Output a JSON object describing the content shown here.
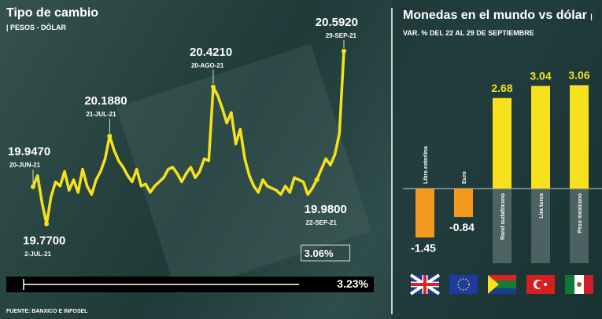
{
  "chart_data": [
    {
      "type": "line",
      "title": "Tipo de cambio",
      "subtitle": "PESOS - DÓLAR",
      "color": "#f5e21a",
      "categories": [
        "20-JUN-21",
        null,
        null,
        "2-JUL-21",
        null,
        null,
        null,
        null,
        null,
        null,
        null,
        null,
        null,
        null,
        null,
        null,
        null,
        "21-JUL-21",
        null,
        null,
        null,
        null,
        null,
        null,
        null,
        null,
        null,
        null,
        null,
        null,
        null,
        null,
        null,
        null,
        null,
        null,
        null,
        null,
        null,
        null,
        "20-AGO-21",
        null,
        null,
        null,
        null,
        null,
        null,
        null,
        null,
        null,
        null,
        null,
        null,
        null,
        null,
        null,
        null,
        null,
        null,
        null,
        null,
        null,
        null,
        "22-SEP-21",
        null,
        null,
        null,
        null,
        null,
        "29-SEP-21"
      ],
      "values": [
        19.947,
        20.0,
        19.87,
        19.77,
        19.9,
        19.97,
        19.95,
        20.02,
        19.93,
        19.98,
        19.92,
        20.03,
        19.95,
        19.91,
        19.98,
        20.02,
        20.08,
        20.188,
        20.12,
        20.07,
        20.04,
        20.0,
        19.97,
        20.03,
        19.95,
        19.96,
        19.92,
        19.95,
        19.97,
        19.99,
        20.03,
        20.04,
        20.01,
        19.97,
        20.01,
        20.04,
        19.99,
        20.02,
        20.08,
        20.07,
        20.421,
        20.38,
        20.32,
        20.25,
        20.3,
        20.15,
        20.22,
        20.08,
        20.0,
        19.95,
        19.92,
        19.98,
        19.95,
        19.94,
        19.93,
        19.91,
        19.95,
        19.92,
        19.99,
        19.98,
        19.97,
        19.91,
        19.94,
        19.98,
        20.03,
        20.08,
        20.05,
        20.1,
        20.2,
        20.592
      ],
      "value_labels": [
        "19.9470",
        null,
        null,
        "19.7700",
        null,
        null,
        null,
        null,
        null,
        null,
        null,
        null,
        null,
        null,
        null,
        null,
        null,
        "20.1880",
        null,
        null,
        null,
        null,
        null,
        null,
        null,
        null,
        null,
        null,
        null,
        null,
        null,
        null,
        null,
        null,
        null,
        null,
        null,
        null,
        null,
        null,
        "20.4210",
        null,
        null,
        null,
        null,
        null,
        null,
        null,
        null,
        null,
        null,
        null,
        null,
        null,
        null,
        null,
        null,
        null,
        null,
        null,
        null,
        null,
        null,
        "19.9800",
        null,
        null,
        null,
        null,
        null,
        "20.5920"
      ],
      "annotations": [
        "3.06%",
        "3.23%"
      ],
      "source": "FUENTE: BANXICO E INFOSEL"
    },
    {
      "type": "bar",
      "title": "Monedas en el mundo vs dólar",
      "subtitle": "VAR. % DEL 22 AL 29 DE SEPTIEMBRE",
      "categories": [
        "Libra esterlina",
        "Euro",
        "Rand sudafricano",
        "Lira turca",
        "Peso mexicano"
      ],
      "values": [
        -1.45,
        -0.84,
        2.68,
        3.04,
        3.06
      ],
      "colors": [
        "#f39a1e",
        "#f39a1e",
        "#f7e01c",
        "#f7e01c",
        "#f7e01c"
      ]
    }
  ]
}
